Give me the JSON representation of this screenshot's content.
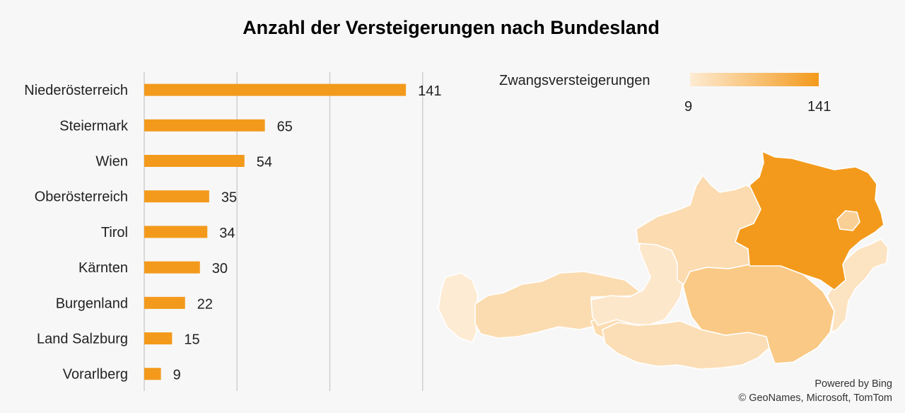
{
  "chart_data": {
    "type": "bar",
    "orientation": "horizontal",
    "title": "Anzahl der Versteigerungen nach Bundesland",
    "categories": [
      "Niederösterreich",
      "Steiermark",
      "Wien",
      "Oberösterreich",
      "Tirol",
      "Kärnten",
      "Burgenland",
      "Land Salzburg",
      "Vorarlberg"
    ],
    "values": [
      141,
      65,
      54,
      35,
      34,
      30,
      22,
      15,
      9
    ],
    "xlim": [
      0,
      150
    ],
    "grid": true,
    "bar_color": "#f39a1c"
  },
  "map": {
    "legend_title": "Zwangsversteigerungen",
    "legend_min": "9",
    "legend_max": "141",
    "color_low": "#fdebd3",
    "color_high": "#f39a1c",
    "regions": [
      {
        "name": "Vorarlberg",
        "value": 9
      },
      {
        "name": "Tirol",
        "value": 34
      },
      {
        "name": "Land Salzburg",
        "value": 15
      },
      {
        "name": "Kärnten",
        "value": 30
      },
      {
        "name": "Oberösterreich",
        "value": 35
      },
      {
        "name": "Steiermark",
        "value": 65
      },
      {
        "name": "Niederösterreich",
        "value": 141
      },
      {
        "name": "Burgenland",
        "value": 22
      },
      {
        "name": "Wien",
        "value": 54
      }
    ]
  },
  "attribution": {
    "line1": "Powered by Bing",
    "line2": "© GeoNames, Microsoft, TomTom"
  }
}
